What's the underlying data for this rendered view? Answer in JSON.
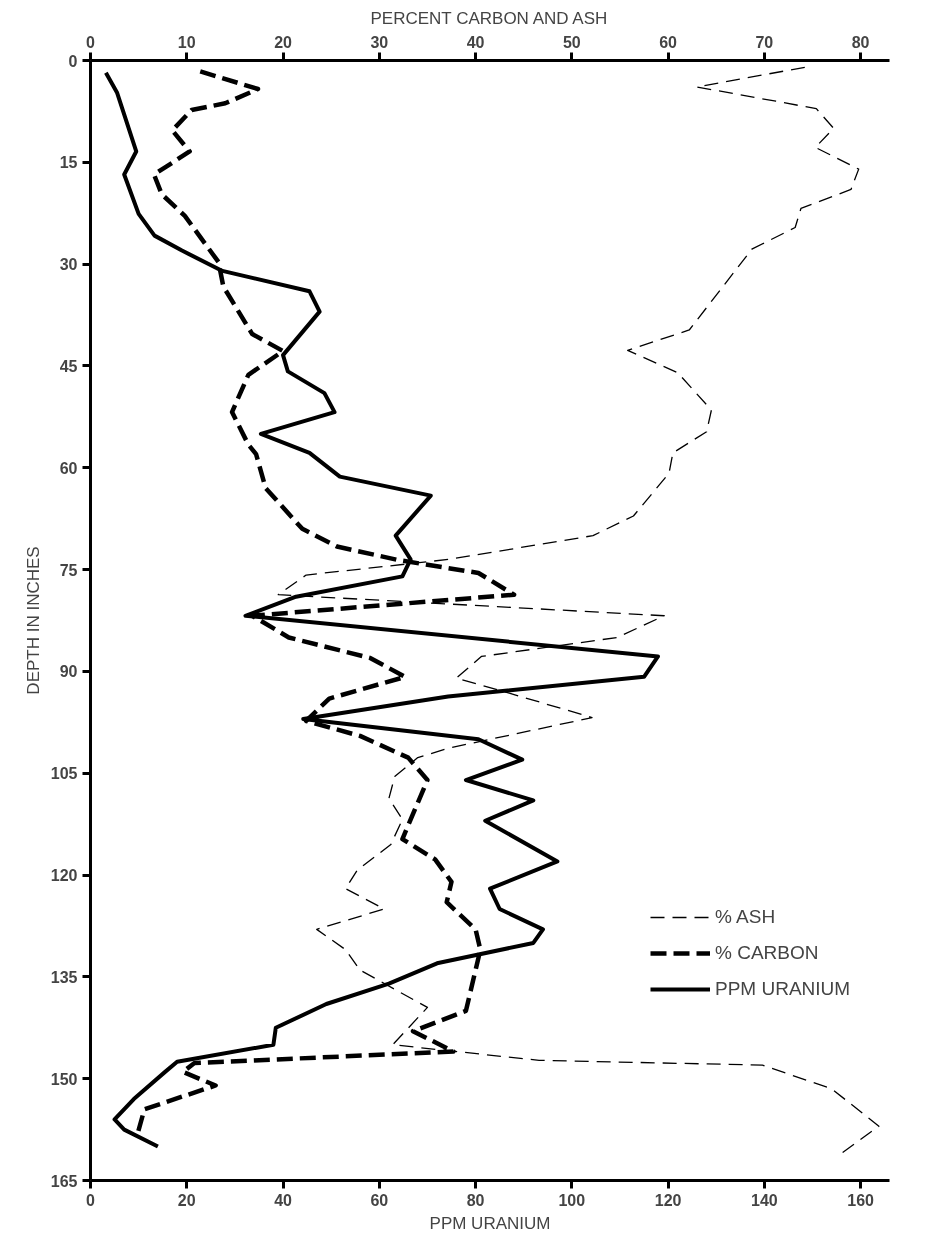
{
  "chart_data": {
    "type": "line",
    "orientation": "horizontal",
    "xlabel": "PPM URANIUM",
    "x2label": "PERCENT CARBON AND ASH",
    "ylabel": "DEPTH IN INCHES",
    "xlim": [
      0,
      166
    ],
    "xticks": [
      0,
      20,
      40,
      60,
      80,
      100,
      120,
      140,
      160
    ],
    "x2lim": [
      0,
      83
    ],
    "x2ticks": [
      0,
      10,
      20,
      30,
      40,
      50,
      60,
      70,
      80
    ],
    "ylim": [
      165,
      0
    ],
    "yticks": [
      0,
      15,
      30,
      45,
      60,
      75,
      90,
      105,
      120,
      135,
      150,
      165
    ],
    "grid": false,
    "legend": "right",
    "marker": "none",
    "series": [
      {
        "name": "% ASH",
        "color": "#000000",
        "axis": "x2",
        "line_style": "dashed",
        "x": [
          1,
          3.9,
          6,
          7.1,
          10,
          12.8,
          16,
          19,
          21.8,
          24.6,
          27.8,
          39.7,
          42.7,
          46,
          51.5,
          54.7,
          57.8,
          60.8,
          67.1,
          70,
          73.5,
          75.8,
          78.7,
          81.8,
          85,
          87.8,
          91,
          93.2,
          96.8,
          101.3,
          102.7,
          105.5,
          108.7,
          111.8,
          115.5,
          119.3,
          122,
          125,
          128,
          131,
          134,
          139.5,
          145,
          147.3,
          148,
          151.5,
          157,
          161
        ],
        "values": [
          74.2,
          63,
          71.2,
          75.4,
          77.2,
          75.3,
          79.8,
          79,
          73.8,
          73.2,
          68.7,
          62.2,
          55.8,
          61,
          64.5,
          64,
          60.5,
          60.1,
          56.4,
          52.2,
          37.2,
          22.4,
          19.5,
          59.6,
          54.7,
          40.6,
          38,
          43.5,
          52.1,
          37.2,
          34,
          31.6,
          31,
          32.4,
          31.2,
          27.7,
          26.5,
          30.5,
          23.5,
          26.5,
          28,
          35,
          31.4,
          46.6,
          69.8,
          77,
          81.9,
          78
        ]
      },
      {
        "name": "% CARBON",
        "color": "#000000",
        "axis": "x2",
        "line_style": "dashed",
        "x": [
          1.6,
          4.2,
          6.3,
          7.3,
          10.3,
          13.4,
          16.8,
          19.7,
          22.9,
          29.7,
          33.3,
          40.3,
          42.8,
          46.3,
          51.8,
          56.6,
          58,
          63,
          69,
          71.6,
          73.6,
          75.5,
          78.7,
          81.8,
          85,
          88,
          90.8,
          94,
          97.3,
          99.5,
          102.7,
          106,
          114.7,
          117.7,
          121,
          124,
          128,
          131,
          140,
          143,
          146,
          147.7,
          149,
          151,
          154.5,
          158.6
        ],
        "values": [
          11.4,
          17.4,
          14,
          10.5,
          8.5,
          10.3,
          6.6,
          7.4,
          9.8,
          13.3,
          13.8,
          16.8,
          20,
          16.4,
          14.7,
          16.4,
          17.2,
          18.2,
          22,
          25.6,
          32,
          40.3,
          44,
          16.8,
          20.6,
          29,
          32.7,
          24.8,
          22.4,
          28,
          33,
          35,
          32.4,
          35.8,
          37.5,
          37,
          40,
          40.5,
          39,
          33.5,
          37.7,
          10.8,
          9.6,
          13,
          5.6,
          4.8
        ]
      },
      {
        "name": "PPM URANIUM",
        "color": "#000000",
        "line_style": "solid",
        "x": [
          1.8,
          4.7,
          13.4,
          16.8,
          22.6,
          25.8,
          28,
          31,
          34,
          37,
          43.4,
          45.8,
          49,
          51.8,
          55,
          57.8,
          61.3,
          64.1,
          70,
          73.5,
          76,
          79,
          81.8,
          87.8,
          90.8,
          93.7,
          97,
          100,
          103,
          106,
          109,
          112,
          118,
          122,
          125,
          128,
          130,
          133,
          136,
          139,
          142.5,
          145,
          147.5,
          149,
          153,
          156,
          157.5,
          160
        ],
        "values": [
          3.2,
          5.5,
          9.5,
          7,
          10,
          13.3,
          19,
          27.4,
          45.5,
          47.6,
          40,
          41,
          48.6,
          50.7,
          35.4,
          45.5,
          51.8,
          70.7,
          63.4,
          66.5,
          64.8,
          42.7,
          32.2,
          117.9,
          115,
          74.3,
          44.2,
          80.6,
          89.7,
          78,
          92,
          82,
          97,
          83,
          85,
          94,
          92,
          72,
          62,
          49,
          38.5,
          38,
          18,
          15.5,
          9,
          5,
          7,
          14
        ]
      }
    ]
  }
}
